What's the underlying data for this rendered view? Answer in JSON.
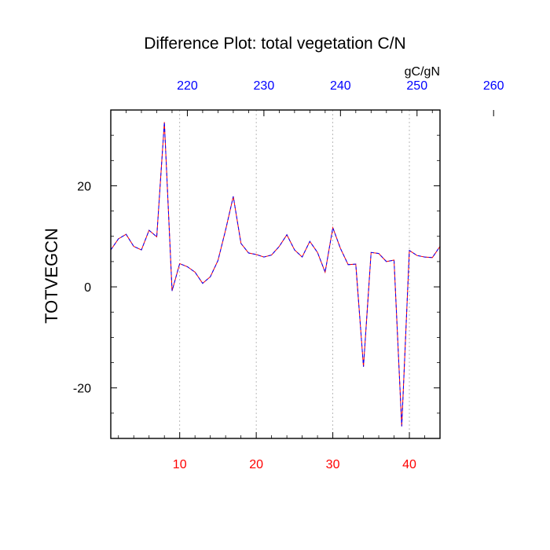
{
  "chart_data": {
    "type": "line",
    "title": "Difference Plot: total vegetation C/N",
    "units_label": "gC/gN",
    "ylabel": "TOTVEGCN",
    "xlabel": "",
    "xlim": [
      1,
      44
    ],
    "ylim": [
      -30,
      35
    ],
    "x_ticks": [
      10,
      20,
      30,
      40
    ],
    "y_ticks": [
      -20,
      0,
      20
    ],
    "top_axis_ticks": [
      220,
      230,
      240,
      250,
      260
    ],
    "top_axis_offset": 209,
    "grid": "vertical-dashed",
    "colors": {
      "bottom_tick_labels": "#ff0000",
      "top_tick_labels": "#0000ff",
      "line_primary": "#ff0000",
      "line_overlay": "#0000ff"
    },
    "series": [
      {
        "x": [
          1,
          2,
          3,
          4,
          5,
          6,
          7,
          8,
          9,
          10,
          11,
          12,
          13,
          14,
          15,
          16,
          17,
          18,
          19,
          20,
          21,
          22,
          23,
          24,
          25,
          26,
          27,
          28,
          29,
          30,
          31,
          32,
          33,
          34,
          35,
          36,
          37,
          38,
          39,
          40,
          41,
          42,
          43,
          44
        ],
        "values": [
          7.3,
          9.5,
          10.4,
          8.0,
          7.3,
          11.2,
          9.9,
          32.6,
          -0.8,
          4.6,
          4.0,
          2.9,
          0.7,
          2.0,
          5.2,
          11.3,
          17.9,
          8.6,
          6.7,
          6.4,
          5.9,
          6.3,
          8.0,
          10.3,
          7.3,
          5.9,
          9.0,
          6.8,
          2.9,
          11.7,
          7.6,
          4.4,
          4.5,
          -15.8,
          6.8,
          6.6,
          5.0,
          5.3,
          -27.6,
          7.2,
          6.2,
          5.9,
          5.8,
          8.0
        ]
      }
    ]
  }
}
